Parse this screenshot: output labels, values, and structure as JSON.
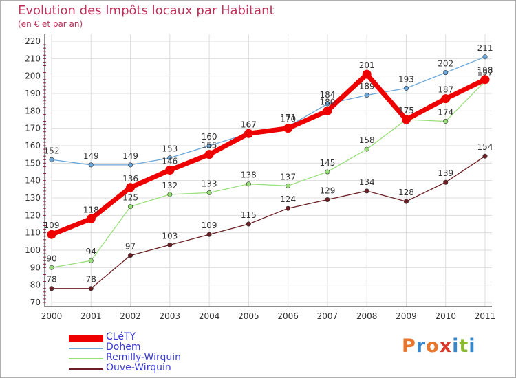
{
  "title": "Evolution des Impôts locaux par Habitant",
  "subtitle": "(en € et par an)",
  "logo": {
    "text": "Proxiti",
    "colors": [
      "#e8762d",
      "#3a87c8",
      "#e8762d",
      "#d93a2b",
      "#3a87c8",
      "#8ab830",
      "#3a87c8"
    ]
  },
  "chart_data": {
    "type": "line",
    "categories": [
      "2000",
      "2001",
      "2002",
      "2003",
      "2004",
      "2005",
      "2006",
      "2007",
      "2008",
      "2009",
      "2010",
      "2011"
    ],
    "ylim": [
      70,
      220
    ],
    "yticks": [
      70,
      80,
      90,
      100,
      110,
      120,
      130,
      140,
      150,
      160,
      170,
      180,
      190,
      200,
      210,
      220
    ],
    "xlabel": "",
    "ylabel": "",
    "grid": true,
    "legend_position": "bottom-left",
    "series": [
      {
        "name": "Ouve-Wirquin",
        "color": "#6b1f24",
        "values": [
          78,
          78,
          97,
          103,
          109,
          115,
          124,
          129,
          134,
          128,
          139,
          154
        ]
      },
      {
        "name": "Remilly-Wirquin",
        "color": "#99e07a",
        "values": [
          90,
          94,
          125,
          132,
          133,
          138,
          137,
          145,
          158,
          175,
          174,
          197
        ]
      },
      {
        "name": "Dohem",
        "color": "#6aa6d8",
        "values": [
          152,
          149,
          149,
          153,
          160,
          167,
          171,
          184,
          189,
          193,
          202,
          211
        ]
      },
      {
        "name": "CLéTY",
        "color": "#ee0000",
        "values": [
          109,
          118,
          136,
          146,
          155,
          167,
          170,
          180,
          201,
          175,
          187,
          198
        ]
      }
    ]
  }
}
